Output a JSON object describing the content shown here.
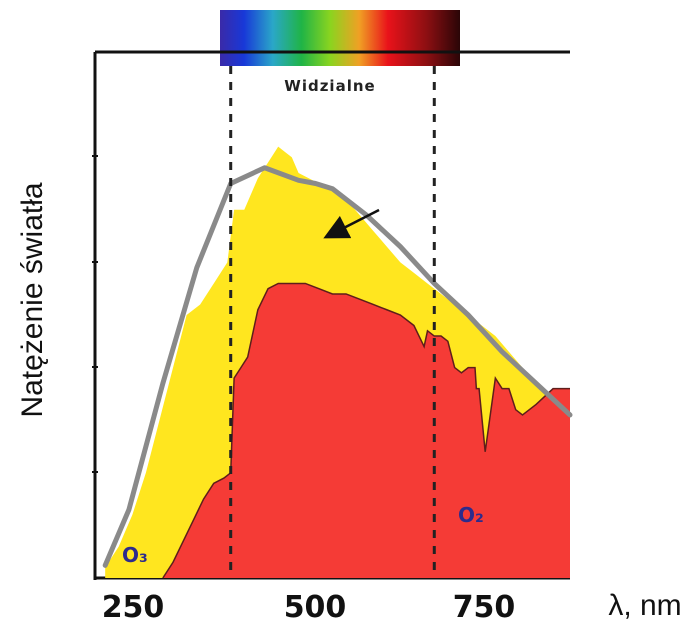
{
  "chart_data": {
    "type": "area",
    "xlabel": "λ, nm",
    "ylabel": "Natężenie światła",
    "xlim": [
      200,
      900
    ],
    "ylim": [
      0,
      5
    ],
    "x_ticks": [
      "250",
      "500",
      "750"
    ],
    "grid": false,
    "colors": {
      "top_of_atmosphere": "#FFE61F",
      "sea_level": "#F53B36",
      "blackbody": "#8A8A8A",
      "dashed_lines": "#222222"
    },
    "series": [
      {
        "x": [
          215,
          235,
          255,
          275,
          295,
          315,
          335,
          355,
          375,
          395,
          405,
          420,
          440,
          460,
          470,
          480,
          490,
          500,
          515,
          530,
          550,
          570,
          590,
          610,
          630,
          650,
          670,
          690,
          710,
          730,
          750,
          770,
          790,
          810,
          830,
          850,
          875,
          900
        ],
        "values": [
          0.1,
          0.3,
          0.6,
          1.0,
          1.5,
          2.0,
          2.5,
          2.6,
          2.8,
          3.0,
          3.5,
          3.5,
          3.8,
          4.0,
          4.1,
          4.05,
          4.0,
          3.85,
          3.8,
          3.75,
          3.7,
          3.6,
          3.45,
          3.3,
          3.15,
          3.0,
          2.9,
          2.8,
          2.7,
          2.6,
          2.5,
          2.4,
          2.3,
          2.15,
          2.0,
          1.85,
          1.7,
          1.6
        ]
      },
      {
        "x": [
          300,
          315,
          330,
          345,
          360,
          375,
          390,
          400,
          405,
          415,
          425,
          440,
          455,
          470,
          490,
          510,
          530,
          550,
          570,
          590,
          610,
          630,
          650,
          670,
          685,
          690,
          700,
          710,
          720,
          730,
          740,
          750,
          760,
          762,
          766,
          775,
          790,
          800,
          810,
          820,
          830,
          850,
          875,
          900
        ],
        "values": [
          0.0,
          0.15,
          0.35,
          0.55,
          0.75,
          0.9,
          0.95,
          1.0,
          1.9,
          2.0,
          2.1,
          2.55,
          2.75,
          2.8,
          2.8,
          2.8,
          2.75,
          2.7,
          2.7,
          2.65,
          2.6,
          2.55,
          2.5,
          2.4,
          2.2,
          2.35,
          2.3,
          2.3,
          2.25,
          2.0,
          1.95,
          2.0,
          2.0,
          1.8,
          1.8,
          1.2,
          1.9,
          1.8,
          1.8,
          1.6,
          1.55,
          1.65,
          1.8,
          1.8
        ]
      },
      {
        "x": [
          215,
          250,
          300,
          350,
          400,
          450,
          500,
          525,
          550,
          600,
          650,
          700,
          750,
          800,
          850,
          900
        ],
        "values": [
          0.12,
          0.65,
          1.85,
          2.95,
          3.75,
          3.9,
          3.78,
          3.75,
          3.7,
          3.45,
          3.15,
          2.8,
          2.5,
          2.15,
          1.85,
          1.55
        ]
      }
    ],
    "annotations": [
      {
        "text": "Widzialne"
      },
      {
        "text": "O₃"
      },
      {
        "text": "O₂"
      }
    ],
    "vertical_lines_nm": [
      400,
      700
    ]
  }
}
